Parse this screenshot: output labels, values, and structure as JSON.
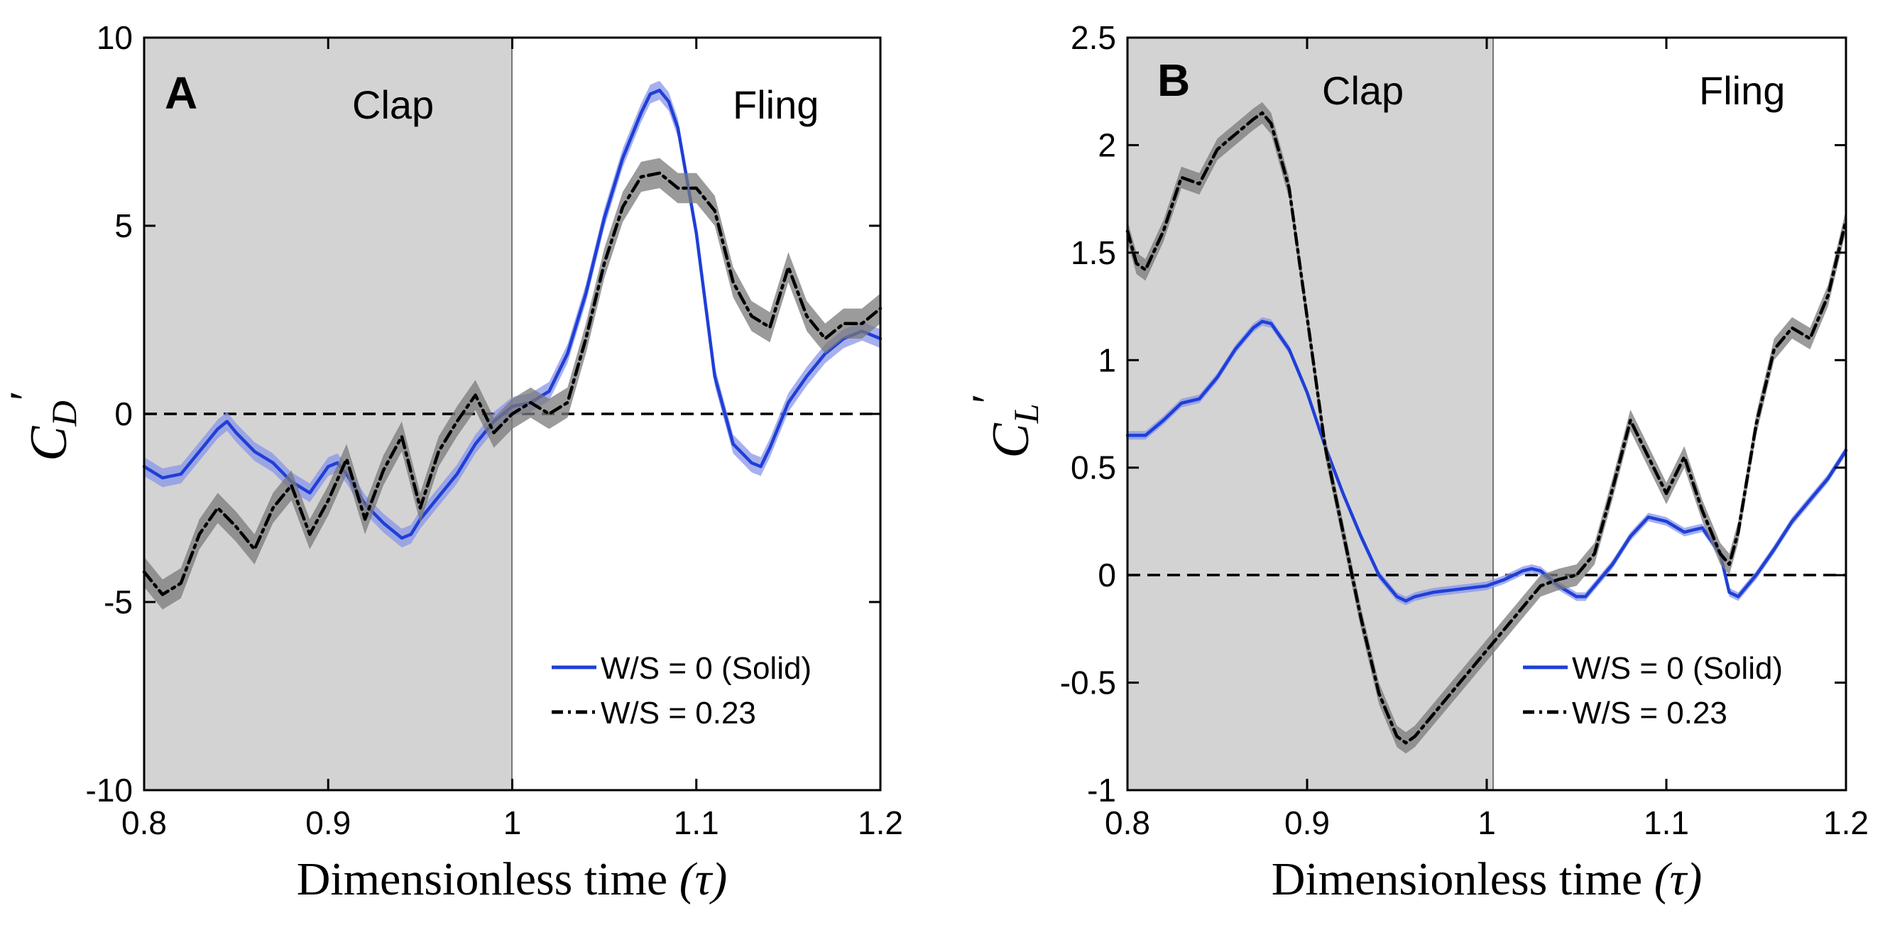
{
  "chart_data": [
    {
      "type": "line",
      "panel_label": "A",
      "regions": [
        {
          "label": "Clap",
          "x_range": [
            0.8,
            1.0
          ],
          "color": "#d3d3d3"
        },
        {
          "label": "Fling",
          "x_range": [
            1.0,
            1.2
          ],
          "color": "#ffffff"
        }
      ],
      "xlabel": "Dimensionless time",
      "xlabel_symbol": "(τ)",
      "ylabel_base": "C",
      "ylabel_sub": "D",
      "ylabel_prime": "′",
      "xlim": [
        0.8,
        1.2
      ],
      "ylim": [
        -10,
        10
      ],
      "xticks": [
        0.8,
        0.9,
        1.0,
        1.1,
        1.2
      ],
      "xtick_labels": [
        "0.8",
        "0.9",
        "1",
        "1.1",
        "1.2"
      ],
      "yticks": [
        -10,
        -5,
        0,
        5,
        10
      ],
      "ytick_labels": [
        "-10",
        "-5",
        "0",
        "5",
        "10"
      ],
      "reference_line": {
        "y": 0,
        "style": "dashed"
      },
      "legend": {
        "position": "bottom-right"
      },
      "series": [
        {
          "name": "W/S = 0 (Solid)",
          "color": "#1f3fd8",
          "band_color": "#8a96e8",
          "style": "solid",
          "x": [
            0.8,
            0.81,
            0.82,
            0.83,
            0.84,
            0.845,
            0.85,
            0.86,
            0.87,
            0.88,
            0.89,
            0.9,
            0.905,
            0.91,
            0.92,
            0.93,
            0.94,
            0.945,
            0.95,
            0.96,
            0.97,
            0.98,
            0.99,
            1.0,
            1.01,
            1.02,
            1.03,
            1.04,
            1.05,
            1.06,
            1.07,
            1.075,
            1.08,
            1.085,
            1.09,
            1.1,
            1.11,
            1.12,
            1.13,
            1.135,
            1.14,
            1.15,
            1.16,
            1.17,
            1.18,
            1.19,
            1.2
          ],
          "y": [
            -1.4,
            -1.7,
            -1.6,
            -1.0,
            -0.4,
            -0.2,
            -0.5,
            -1.0,
            -1.3,
            -1.8,
            -2.1,
            -1.4,
            -1.3,
            -1.6,
            -2.4,
            -2.9,
            -3.3,
            -3.2,
            -2.8,
            -2.2,
            -1.6,
            -0.8,
            -0.2,
            0.2,
            0.3,
            0.6,
            1.6,
            3.2,
            5.2,
            6.8,
            8.0,
            8.5,
            8.6,
            8.3,
            7.6,
            4.8,
            1.0,
            -0.8,
            -1.3,
            -1.4,
            -0.9,
            0.3,
            1.0,
            1.6,
            2.0,
            2.2,
            2.0
          ],
          "band": 0.25
        },
        {
          "name": "W/S = 0.23",
          "color": "#000000",
          "band_color": "#7a7a7a",
          "style": "dash-dot",
          "x": [
            0.8,
            0.81,
            0.82,
            0.83,
            0.84,
            0.85,
            0.86,
            0.87,
            0.88,
            0.89,
            0.9,
            0.91,
            0.92,
            0.93,
            0.94,
            0.95,
            0.96,
            0.97,
            0.98,
            0.99,
            1.0,
            1.01,
            1.02,
            1.03,
            1.04,
            1.05,
            1.06,
            1.07,
            1.08,
            1.09,
            1.1,
            1.11,
            1.12,
            1.13,
            1.14,
            1.15,
            1.16,
            1.17,
            1.18,
            1.19,
            1.2
          ],
          "y": [
            -4.2,
            -4.8,
            -4.5,
            -3.2,
            -2.5,
            -3.0,
            -3.6,
            -2.5,
            -1.9,
            -3.2,
            -2.3,
            -1.2,
            -2.8,
            -1.5,
            -0.6,
            -2.5,
            -1.0,
            -0.2,
            0.5,
            -0.5,
            0.0,
            0.3,
            0.0,
            0.3,
            2.0,
            4.0,
            5.5,
            6.3,
            6.4,
            6.0,
            6.0,
            5.4,
            3.5,
            2.6,
            2.3,
            3.9,
            2.6,
            2.0,
            2.4,
            2.4,
            2.8
          ],
          "band": 0.4
        }
      ]
    },
    {
      "type": "line",
      "panel_label": "B",
      "regions": [
        {
          "label": "Clap",
          "x_range": [
            0.8,
            1.0
          ],
          "color": "#d3d3d3"
        },
        {
          "label": "Fling",
          "x_range": [
            1.0,
            1.2
          ],
          "color": "#ffffff"
        }
      ],
      "xlabel": "Dimensionless time",
      "xlabel_symbol": "(τ)",
      "ylabel_base": "C",
      "ylabel_sub": "L",
      "ylabel_prime": "′",
      "xlim": [
        0.8,
        1.2
      ],
      "ylim": [
        -1,
        2.5
      ],
      "xticks": [
        0.8,
        0.9,
        1.0,
        1.1,
        1.2
      ],
      "xtick_labels": [
        "0.8",
        "0.9",
        "1",
        "1.1",
        "1.2"
      ],
      "yticks": [
        -1,
        -0.5,
        0,
        0.5,
        1,
        1.5,
        2,
        2.5
      ],
      "ytick_labels": [
        "-1",
        "-0.5",
        "0",
        "0.5",
        "1",
        "1.5",
        "2",
        "2.5"
      ],
      "reference_line": {
        "y": 0,
        "style": "dashed"
      },
      "legend": {
        "position": "bottom-right"
      },
      "series": [
        {
          "name": "W/S = 0 (Solid)",
          "color": "#1f3fd8",
          "band_color": "#8a96e8",
          "style": "solid",
          "x": [
            0.8,
            0.81,
            0.82,
            0.83,
            0.84,
            0.85,
            0.86,
            0.87,
            0.875,
            0.88,
            0.89,
            0.9,
            0.91,
            0.92,
            0.93,
            0.94,
            0.95,
            0.955,
            0.96,
            0.97,
            0.98,
            0.99,
            1.0,
            1.01,
            1.02,
            1.025,
            1.03,
            1.04,
            1.05,
            1.055,
            1.06,
            1.07,
            1.08,
            1.09,
            1.1,
            1.11,
            1.12,
            1.13,
            1.135,
            1.14,
            1.15,
            1.16,
            1.17,
            1.18,
            1.19,
            1.2
          ],
          "y": [
            0.65,
            0.65,
            0.72,
            0.8,
            0.82,
            0.92,
            1.05,
            1.15,
            1.18,
            1.17,
            1.05,
            0.85,
            0.6,
            0.38,
            0.18,
            0.0,
            -0.1,
            -0.12,
            -0.1,
            -0.08,
            -0.07,
            -0.06,
            -0.05,
            -0.02,
            0.02,
            0.03,
            0.02,
            -0.05,
            -0.1,
            -0.1,
            -0.05,
            0.05,
            0.18,
            0.27,
            0.25,
            0.2,
            0.22,
            0.1,
            -0.08,
            -0.1,
            0.0,
            0.12,
            0.25,
            0.35,
            0.45,
            0.58
          ],
          "band": 0.02
        },
        {
          "name": "W/S = 0.23",
          "color": "#000000",
          "band_color": "#7a7a7a",
          "style": "dash-dot",
          "x": [
            0.8,
            0.805,
            0.81,
            0.82,
            0.83,
            0.84,
            0.85,
            0.86,
            0.87,
            0.875,
            0.88,
            0.89,
            0.9,
            0.91,
            0.92,
            0.93,
            0.94,
            0.95,
            0.955,
            0.96,
            0.97,
            0.98,
            0.99,
            1.0,
            1.01,
            1.02,
            1.03,
            1.04,
            1.05,
            1.06,
            1.07,
            1.08,
            1.09,
            1.1,
            1.11,
            1.12,
            1.13,
            1.135,
            1.14,
            1.15,
            1.16,
            1.17,
            1.18,
            1.19,
            1.2
          ],
          "y": [
            1.6,
            1.45,
            1.42,
            1.6,
            1.85,
            1.82,
            1.98,
            2.05,
            2.12,
            2.15,
            2.1,
            1.8,
            1.2,
            0.6,
            0.2,
            -0.2,
            -0.55,
            -0.75,
            -0.78,
            -0.75,
            -0.65,
            -0.55,
            -0.45,
            -0.35,
            -0.25,
            -0.15,
            -0.05,
            -0.02,
            0.0,
            0.1,
            0.4,
            0.72,
            0.55,
            0.38,
            0.55,
            0.3,
            0.1,
            0.05,
            0.2,
            0.7,
            1.05,
            1.15,
            1.1,
            1.3,
            1.65
          ],
          "band": 0.05
        }
      ]
    }
  ]
}
